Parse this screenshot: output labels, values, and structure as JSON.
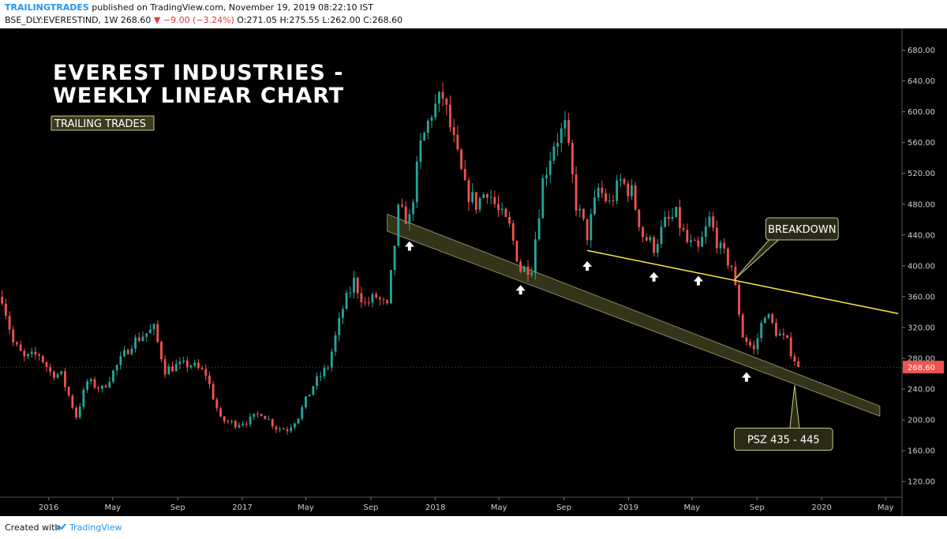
{
  "header": {
    "brand": "TRAILINGTRADES",
    "published": " published on TradingView.com, November 19, 2019 08:22:10 IST",
    "symbol": "BSE_DLY:EVERESTIND, 1W",
    "price": " 268.60 ",
    "change": "▼ −9.00 (−3.24%)",
    "ohlc": " O:271.05 H:275.55 L:262.00 C:268.60"
  },
  "footer": {
    "created": "Created with",
    "brand": "TradingView"
  },
  "colors": {
    "background": "#000000",
    "up": "#26a69a",
    "down": "#ef5350",
    "channel": "#3a3a1e",
    "trendline": "#ffeb3b"
  },
  "chart_data": {
    "type": "candlestick",
    "title": "EVEREST INDUSTRIES -\nWEEKLY LINEAR CHART",
    "title_lines": [
      "EVEREST INDUSTRIES -",
      "WEEKLY LINEAR CHART"
    ],
    "badge": "TRAILING TRADES",
    "yticks": [
      120,
      160,
      200,
      240,
      280,
      320,
      360,
      400,
      440,
      480,
      520,
      560,
      600,
      640,
      680
    ],
    "ylim": [
      110,
      700
    ],
    "xlim": [
      "2015-10-01",
      "2020-06-01"
    ],
    "xticks": [
      {
        "label": "2016",
        "date": "2016-01-01"
      },
      {
        "label": "May",
        "date": "2016-05-01"
      },
      {
        "label": "Sep",
        "date": "2016-09-01"
      },
      {
        "label": "2017",
        "date": "2017-01-01"
      },
      {
        "label": "May",
        "date": "2017-05-01"
      },
      {
        "label": "Sep",
        "date": "2017-09-01"
      },
      {
        "label": "2018",
        "date": "2018-01-01"
      },
      {
        "label": "May",
        "date": "2018-05-01"
      },
      {
        "label": "Sep",
        "date": "2018-09-01"
      },
      {
        "label": "2019",
        "date": "2019-01-01"
      },
      {
        "label": "May",
        "date": "2019-05-01"
      },
      {
        "label": "Sep",
        "date": "2019-09-01"
      },
      {
        "label": "2020",
        "date": "2020-01-01"
      },
      {
        "label": "May",
        "date": "2020-05-01"
      }
    ],
    "last_price": "268.60",
    "last_value": 268.6,
    "price_path": [
      {
        "date": "2015-10-05",
        "close": 360
      },
      {
        "date": "2015-10-26",
        "close": 300
      },
      {
        "date": "2015-11-16",
        "close": 280
      },
      {
        "date": "2015-12-14",
        "close": 285
      },
      {
        "date": "2016-01-04",
        "close": 262
      },
      {
        "date": "2016-01-25",
        "close": 258
      },
      {
        "date": "2016-02-22",
        "close": 205
      },
      {
        "date": "2016-03-14",
        "close": 250
      },
      {
        "date": "2016-04-11",
        "close": 240
      },
      {
        "date": "2016-05-09",
        "close": 270
      },
      {
        "date": "2016-06-06",
        "close": 300
      },
      {
        "date": "2016-06-27",
        "close": 310
      },
      {
        "date": "2016-07-18",
        "close": 318
      },
      {
        "date": "2016-08-08",
        "close": 265
      },
      {
        "date": "2016-08-29",
        "close": 270
      },
      {
        "date": "2016-09-26",
        "close": 272
      },
      {
        "date": "2016-10-24",
        "close": 260
      },
      {
        "date": "2016-11-21",
        "close": 200
      },
      {
        "date": "2016-12-19",
        "close": 195
      },
      {
        "date": "2017-01-16",
        "close": 200
      },
      {
        "date": "2017-02-06",
        "close": 210
      },
      {
        "date": "2017-03-06",
        "close": 190
      },
      {
        "date": "2017-03-27",
        "close": 188
      },
      {
        "date": "2017-04-17",
        "close": 205
      },
      {
        "date": "2017-05-15",
        "close": 245
      },
      {
        "date": "2017-06-12",
        "close": 270
      },
      {
        "date": "2017-07-10",
        "close": 345
      },
      {
        "date": "2017-07-31",
        "close": 380
      },
      {
        "date": "2017-08-21",
        "close": 350
      },
      {
        "date": "2017-09-11",
        "close": 360
      },
      {
        "date": "2017-10-02",
        "close": 345
      },
      {
        "date": "2017-10-23",
        "close": 470
      },
      {
        "date": "2017-11-13",
        "close": 460
      },
      {
        "date": "2017-12-04",
        "close": 555
      },
      {
        "date": "2017-12-25",
        "close": 600
      },
      {
        "date": "2018-01-15",
        "close": 620
      },
      {
        "date": "2018-02-05",
        "close": 560
      },
      {
        "date": "2018-02-26",
        "close": 500
      },
      {
        "date": "2018-03-19",
        "close": 480
      },
      {
        "date": "2018-04-09",
        "close": 500
      },
      {
        "date": "2018-04-30",
        "close": 470
      },
      {
        "date": "2018-05-21",
        "close": 450
      },
      {
        "date": "2018-06-11",
        "close": 395
      },
      {
        "date": "2018-07-02",
        "close": 400
      },
      {
        "date": "2018-07-23",
        "close": 510
      },
      {
        "date": "2018-08-13",
        "close": 560
      },
      {
        "date": "2018-09-03",
        "close": 580
      },
      {
        "date": "2018-09-24",
        "close": 480
      },
      {
        "date": "2018-10-15",
        "close": 440
      },
      {
        "date": "2018-11-05",
        "close": 500
      },
      {
        "date": "2018-11-26",
        "close": 480
      },
      {
        "date": "2018-12-17",
        "close": 510
      },
      {
        "date": "2019-01-07",
        "close": 495
      },
      {
        "date": "2019-01-28",
        "close": 440
      },
      {
        "date": "2019-02-18",
        "close": 425
      },
      {
        "date": "2019-03-11",
        "close": 455
      },
      {
        "date": "2019-04-01",
        "close": 465
      },
      {
        "date": "2019-04-22",
        "close": 430
      },
      {
        "date": "2019-05-13",
        "close": 420
      },
      {
        "date": "2019-06-03",
        "close": 460
      },
      {
        "date": "2019-06-24",
        "close": 420
      },
      {
        "date": "2019-07-15",
        "close": 400
      },
      {
        "date": "2019-08-05",
        "close": 310
      },
      {
        "date": "2019-08-26",
        "close": 290
      },
      {
        "date": "2019-09-16",
        "close": 340
      },
      {
        "date": "2019-10-07",
        "close": 315
      },
      {
        "date": "2019-10-28",
        "close": 300
      },
      {
        "date": "2019-11-18",
        "close": 268.6
      }
    ],
    "channel": {
      "upper": [
        {
          "date": "2017-10-02",
          "value": 467
        },
        {
          "date": "2020-04-20",
          "value": 218
        }
      ],
      "lower": [
        {
          "date": "2017-10-02",
          "value": 445
        },
        {
          "date": "2020-04-20",
          "value": 205
        }
      ]
    },
    "trendline": [
      {
        "date": "2018-10-15",
        "value": 420
      },
      {
        "date": "2020-05-25",
        "value": 338
      }
    ],
    "arrows": [
      {
        "date": "2017-11-13",
        "value": 432
      },
      {
        "date": "2018-06-11",
        "value": 375
      },
      {
        "date": "2018-10-15",
        "value": 406
      },
      {
        "date": "2019-02-18",
        "value": 392
      },
      {
        "date": "2019-05-13",
        "value": 387
      },
      {
        "date": "2019-08-12",
        "value": 262
      }
    ],
    "annotations": [
      {
        "text": "BREAKDOWN",
        "box_date": "2019-11-25",
        "box_value": 448,
        "target_date": "2019-07-20",
        "target_value": 382
      },
      {
        "text": "PSZ 435 - 445",
        "box_date": "2019-10-21",
        "box_value": 175,
        "target_date": "2019-11-11",
        "target_value": 245
      }
    ]
  }
}
